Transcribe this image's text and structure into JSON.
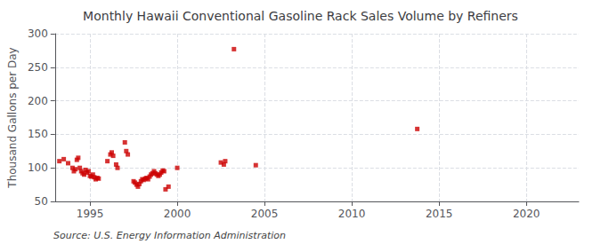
{
  "chart_data": {
    "type": "scatter",
    "title": "Monthly Hawaii Conventional Gasoline Rack Sales Volume by Refiners",
    "ylabel": "Thousand Gallons per Day",
    "annotations": [
      "Source: U.S. Energy Information Administration"
    ],
    "color": "#cc0000",
    "marker": "square",
    "x": [
      1993.25,
      1993.5,
      1993.75,
      1994.0,
      1994.08,
      1994.17,
      1994.25,
      1994.33,
      1994.42,
      1994.5,
      1994.58,
      1994.67,
      1994.75,
      1994.83,
      1994.92,
      1995.0,
      1995.08,
      1995.17,
      1995.25,
      1995.33,
      1995.42,
      1995.5,
      1996.0,
      1996.17,
      1996.25,
      1996.33,
      1996.5,
      1996.58,
      1997.0,
      1997.08,
      1997.17,
      1997.5,
      1997.58,
      1997.67,
      1997.75,
      1997.83,
      1997.92,
      1998.0,
      1998.08,
      1998.17,
      1998.25,
      1998.33,
      1998.42,
      1998.5,
      1998.58,
      1998.67,
      1998.75,
      1998.83,
      1998.92,
      1999.0,
      1999.08,
      1999.17,
      1999.25,
      1999.33,
      1999.5,
      2000.0,
      2002.5,
      2002.67,
      2002.75,
      2003.25,
      2004.5,
      2013.75
    ],
    "values": [
      110,
      113,
      107,
      100,
      95,
      98,
      112,
      115,
      100,
      95,
      92,
      90,
      97,
      93,
      95,
      88,
      87,
      90,
      86,
      83,
      85,
      84,
      110,
      120,
      123,
      118,
      105,
      100,
      138,
      125,
      120,
      80,
      78,
      75,
      72,
      76,
      80,
      83,
      82,
      84,
      85,
      83,
      87,
      90,
      92,
      95,
      92,
      90,
      88,
      90,
      93,
      96,
      95,
      68,
      72,
      100,
      108,
      105,
      110,
      277,
      104,
      158
    ],
    "xlim": [
      1993.0,
      2023.0
    ],
    "ylim": [
      50,
      300
    ],
    "xticks": [
      1995,
      2000,
      2005,
      2010,
      2015,
      2020
    ],
    "yticks": [
      50,
      100,
      150,
      200,
      250,
      300
    ],
    "grid": true
  }
}
